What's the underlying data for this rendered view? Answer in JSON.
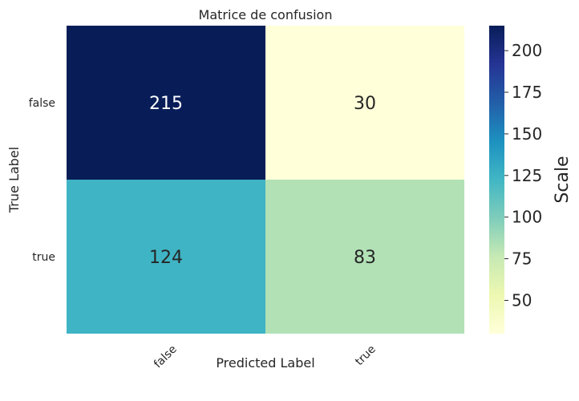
{
  "chart_data": {
    "type": "heatmap",
    "title": "Matrice de confusion",
    "xlabel": "Predicted Label",
    "ylabel": "True Label",
    "x_categories": [
      "false",
      "true"
    ],
    "y_categories": [
      "false",
      "true"
    ],
    "values": [
      [
        215,
        30
      ],
      [
        124,
        83
      ]
    ],
    "colorbar": {
      "label": "Scale",
      "ticks": [
        "50",
        "75",
        "100",
        "125",
        "150",
        "175",
        "200"
      ],
      "range": [
        30,
        215
      ],
      "colormap": "YlGnBu"
    },
    "grid": false
  }
}
